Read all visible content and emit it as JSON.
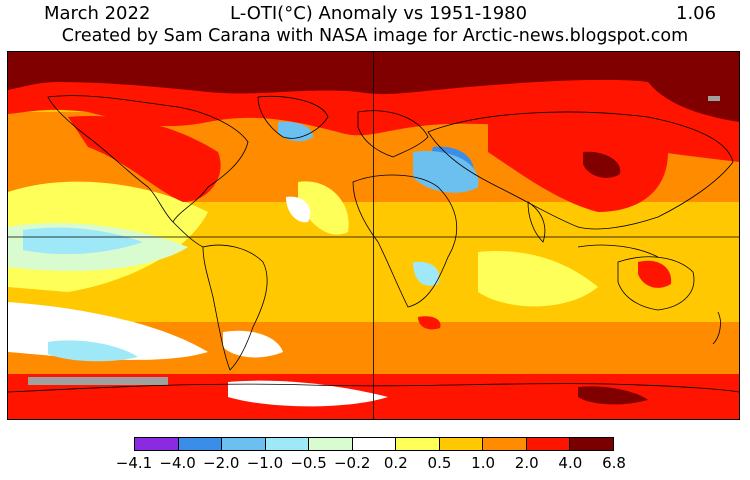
{
  "header": {
    "date": "March 2022",
    "title": "L-OTI(°C) Anomaly vs 1951-1980",
    "global_mean": "1.06",
    "credit": "Created by Sam Carana with NASA image for Arctic-news.blogspot.com"
  },
  "legend": {
    "colors": [
      "#8a2be2",
      "#3a8ee8",
      "#6cc0f0",
      "#9ee8f8",
      "#d8fcd0",
      "#ffffff",
      "#ffff5a",
      "#ffc800",
      "#ff8c00",
      "#ff1400",
      "#7a0000"
    ],
    "ticks": [
      "−4.1",
      "−4.0",
      "−2.0",
      "−1.0",
      "−0.5",
      "−0.2",
      "0.2",
      "0.5",
      "1.0",
      "2.0",
      "4.0",
      "6.8"
    ]
  },
  "map_colors": {
    "dark_red": "#800000",
    "red": "#ff1400",
    "orange": "#ff8c00",
    "gold": "#ffc800",
    "yellow": "#ffff5a",
    "white": "#ffffff",
    "pale_green": "#d8fcd0",
    "light_cyan": "#9ee8f8",
    "light_blue": "#6cc0f0",
    "blue": "#3a8ee8",
    "missing": "#a0a0a0"
  }
}
